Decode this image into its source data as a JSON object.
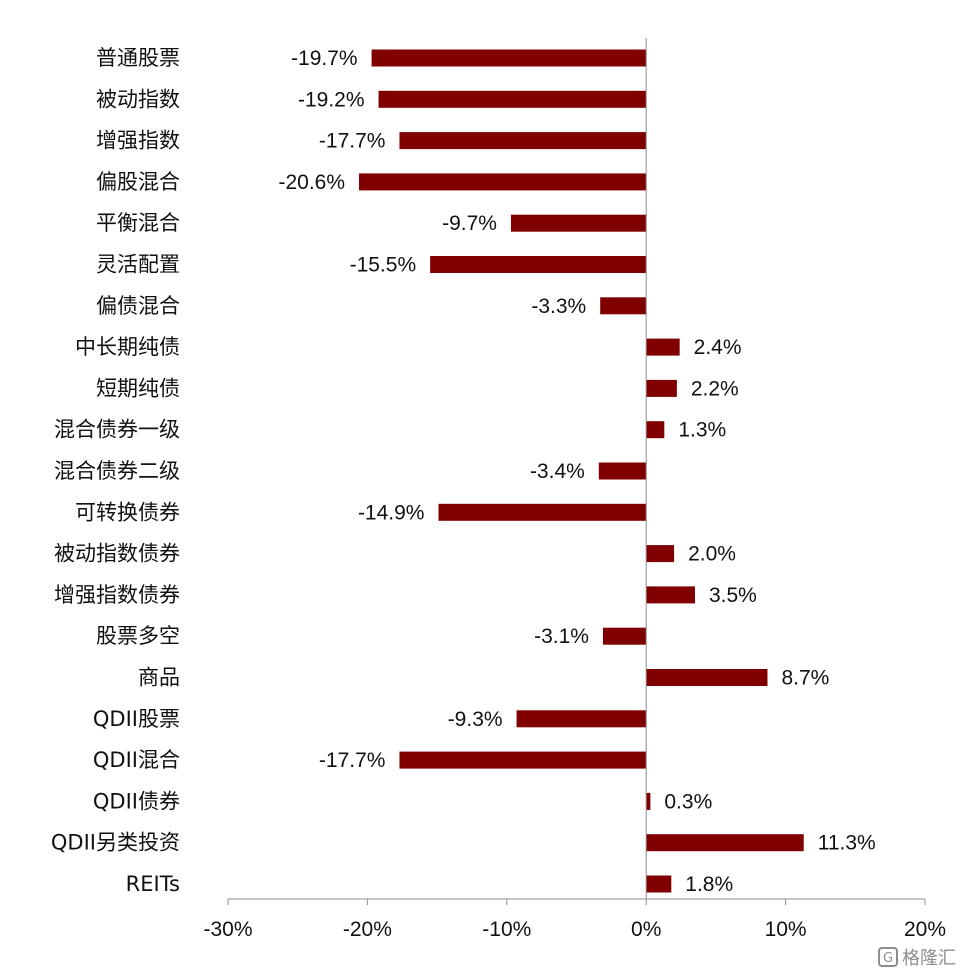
{
  "chart_data": {
    "type": "bar",
    "orientation": "horizontal",
    "categories": [
      "普通股票",
      "被动指数",
      "增强指数",
      "偏股混合",
      "平衡混合",
      "灵活配置",
      "偏债混合",
      "中长期纯债",
      "短期纯债",
      "混合债券一级",
      "混合债券二级",
      "可转换债券",
      "被动指数债券",
      "增强指数债券",
      "股票多空",
      "商品",
      "QDII股票",
      "QDII混合",
      "QDII债券",
      "QDII另类投资",
      "REITs"
    ],
    "values": [
      -19.7,
      -19.2,
      -17.7,
      -20.6,
      -9.7,
      -15.5,
      -3.3,
      2.4,
      2.2,
      1.3,
      -3.4,
      -14.9,
      2.0,
      3.5,
      -3.1,
      8.7,
      -9.3,
      -17.7,
      0.3,
      11.3,
      1.8
    ],
    "value_labels": [
      "-19.7%",
      "-19.2%",
      "-17.7%",
      "-20.6%",
      "-9.7%",
      "-15.5%",
      "-3.3%",
      "2.4%",
      "2.2%",
      "1.3%",
      "-3.4%",
      "-14.9%",
      "2.0%",
      "3.5%",
      "-3.1%",
      "8.7%",
      "-9.3%",
      "-17.7%",
      "0.3%",
      "11.3%",
      "1.8%"
    ],
    "xlim": [
      -30,
      20
    ],
    "x_ticks": [
      -30,
      -20,
      -10,
      0,
      10,
      20
    ],
    "x_tick_labels": [
      "-30%",
      "-20%",
      "-10%",
      "0%",
      "10%",
      "20%"
    ],
    "bar_color": "#800000",
    "grid": false,
    "title": "",
    "xlabel": "",
    "ylabel": ""
  },
  "watermark": {
    "text": "格隆汇",
    "icon": "G"
  }
}
